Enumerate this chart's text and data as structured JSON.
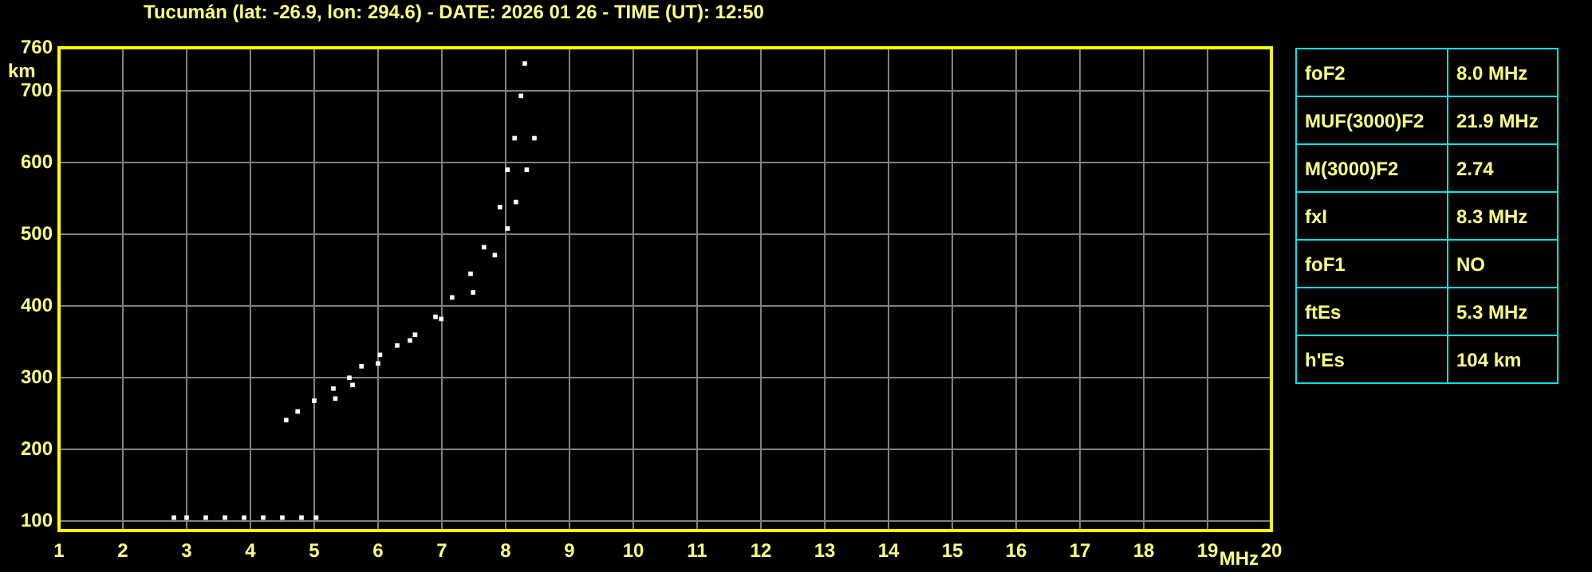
{
  "chart_data": [
    {
      "type": "scatter",
      "title": "Tucumán (lat: -26.9, lon: 294.6) - DATE: 2026 01 26 - TIME (UT): 12:50",
      "xlabel": "MHz",
      "ylabel": "km",
      "xlim": [
        1,
        20
      ],
      "xticks": [
        1,
        2,
        3,
        4,
        5,
        6,
        7,
        8,
        9,
        10,
        11,
        12,
        13,
        14,
        15,
        16,
        17,
        18,
        19,
        20
      ],
      "ylim": [
        87,
        760
      ],
      "yticks": [
        100,
        200,
        300,
        400,
        500,
        600,
        700,
        760
      ],
      "grid": true,
      "legend": false,
      "marker": "square",
      "series": [
        {
          "color": "#ffffff",
          "x": [
            4.56,
            4.74,
            5.0,
            5.3,
            5.55,
            5.74,
            6.03,
            6.3,
            6.58,
            6.9,
            7.16,
            7.45,
            7.66,
            7.91,
            8.03,
            8.14,
            8.24,
            8.3
          ],
          "values": [
            241,
            253,
            268,
            285,
            300,
            316,
            332,
            345,
            360,
            385,
            412,
            445,
            482,
            538,
            590,
            634,
            693,
            738
          ]
        },
        {
          "color": "#ffffff",
          "x": [
            5.33,
            5.6,
            6.0,
            6.5,
            6.99,
            7.49,
            7.83,
            8.03,
            8.16,
            8.33,
            8.45
          ],
          "values": [
            271,
            290,
            320,
            352,
            382,
            419,
            471,
            508,
            545,
            590,
            634
          ]
        },
        {
          "color": "#ffffff",
          "x": [
            2.8,
            3.0,
            3.3,
            3.6,
            3.9,
            4.2,
            4.5,
            4.8,
            5.03
          ],
          "values": [
            105,
            105,
            105,
            105,
            105,
            105,
            105,
            105,
            105
          ]
        }
      ]
    },
    {
      "type": "other",
      "annotations": [
        "foF2",
        "8.0 MHz",
        "MUF(3000)F2",
        "21.9 MHz",
        "M(3000)F2",
        "2.74",
        "fxI",
        "8.3 MHz",
        "foF1",
        "NO",
        "ftEs",
        "5.3 MHz",
        "h'Es",
        "104 km"
      ]
    }
  ]
}
